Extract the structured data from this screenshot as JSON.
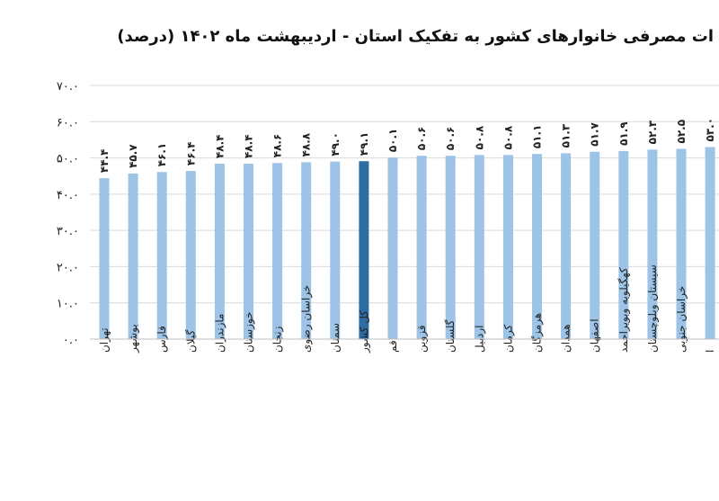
{
  "title": "ات مصرفی خانوارهای کشور به تفکیک استان - اردیبهشت ماه ۱۴۰۲ (درصد)",
  "colors": {
    "bar": "#9dc3e6",
    "highlight": "#2e6da4",
    "grid": "#d9d9d9",
    "axis": "#bfbfbf"
  },
  "chart_data": {
    "type": "bar",
    "title": "ات مصرفی خانوارهای کشور به تفکیک استان - اردیبهشت ماه ۱۴۰۲ (درصد)",
    "xlabel": "",
    "ylabel": "",
    "ylim": [
      0,
      70
    ],
    "yticks": [
      0,
      10,
      20,
      30,
      40,
      50,
      60,
      70
    ],
    "ytick_labels": [
      "۰.۰",
      "۱۰.۰",
      "۲۰.۰",
      "۳۰.۰",
      "۴۰.۰",
      "۵۰.۰",
      "۶۰.۰",
      "۷۰.۰"
    ],
    "grid": true,
    "highlight_category": "کل کشور",
    "categories": [
      "تهران",
      "بوشهر",
      "فارس",
      "گیلان",
      "مازندران",
      "خوزستان",
      "زنجان",
      "خراسان رضوی",
      "سمنان",
      "کل کشور",
      "قم",
      "قزوین",
      "گلستان",
      "اردبیل",
      "کرمان",
      "هرمزگان",
      "همدان",
      "اصفهان",
      "کهگیلویه وبویراحمد",
      "سیستان وبلوچستان",
      "خراسان جنوبی",
      "ا"
    ],
    "values": [
      44.4,
      45.7,
      46.1,
      46.4,
      48.4,
      48.4,
      48.6,
      48.8,
      49.0,
      49.1,
      50.1,
      50.6,
      50.6,
      50.8,
      50.8,
      51.1,
      51.3,
      51.7,
      51.9,
      52.3,
      52.5,
      53.0
    ],
    "value_labels": [
      "۴۴.۴",
      "۴۵.۷",
      "۴۶.۱",
      "۴۶.۴",
      "۴۸.۴",
      "۴۸.۴",
      "۴۸.۶",
      "۴۸.۸",
      "۴۹.۰",
      "۴۹.۱",
      "۵۰.۱",
      "۵۰.۶",
      "۵۰.۶",
      "۵۰.۸",
      "۵۰.۸",
      "۵۱.۱",
      "۵۱.۳",
      "۵۱.۷",
      "۵۱.۹",
      "۵۲.۳",
      "۵۲.۵",
      "۵۳.۰"
    ]
  }
}
